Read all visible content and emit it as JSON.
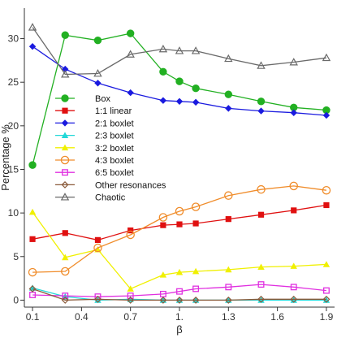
{
  "chart_data": {
    "type": "line",
    "xlabel": "β",
    "ylabel": "Percentage %",
    "xlim": [
      0.05,
      1.95
    ],
    "ylim": [
      -0.8,
      33.5
    ],
    "xticks": [
      0.1,
      0.4,
      0.7,
      1.0,
      1.3,
      1.6,
      1.9
    ],
    "xtick_labels": [
      "0.1",
      "0.4",
      "0.7",
      "1.",
      "1.3",
      "1.6",
      "1.9"
    ],
    "yticks": [
      0,
      5,
      10,
      15,
      20,
      25,
      30
    ],
    "ytick_labels": [
      "0",
      "5",
      "10",
      "15",
      "20",
      "25",
      "30"
    ],
    "grid": false,
    "legend_placement": "left-center",
    "series": [
      {
        "name": "Box",
        "color": "#22b022",
        "marker": "circle-filled",
        "x": [
          0.1,
          0.3,
          0.5,
          0.7,
          0.9,
          1.0,
          1.1,
          1.3,
          1.5,
          1.7,
          1.9
        ],
        "y": [
          15.5,
          30.4,
          29.8,
          30.6,
          26.2,
          25.1,
          24.3,
          23.6,
          22.8,
          22.1,
          21.8
        ]
      },
      {
        "name": "1:1 linear",
        "color": "#e01010",
        "marker": "square-filled",
        "x": [
          0.1,
          0.3,
          0.5,
          0.7,
          0.9,
          1.0,
          1.1,
          1.3,
          1.5,
          1.7,
          1.9
        ],
        "y": [
          7.0,
          7.7,
          6.9,
          8.0,
          8.6,
          8.7,
          8.8,
          9.3,
          9.8,
          10.3,
          10.9
        ]
      },
      {
        "name": "2:1 boxlet",
        "color": "#1a1adf",
        "marker": "diamond-filled",
        "x": [
          0.1,
          0.3,
          0.5,
          0.7,
          0.9,
          1.0,
          1.1,
          1.3,
          1.5,
          1.7,
          1.9
        ],
        "y": [
          29.1,
          26.5,
          24.9,
          23.8,
          22.9,
          22.8,
          22.7,
          22.0,
          21.7,
          21.5,
          21.2
        ]
      },
      {
        "name": "2:3 boxlet",
        "color": "#22d8d8",
        "marker": "triangle-filled",
        "x": [
          0.1,
          0.3,
          0.5,
          0.7,
          0.9,
          1.0,
          1.1,
          1.3,
          1.5,
          1.7,
          1.9
        ],
        "y": [
          1.4,
          0.4,
          0.0,
          0.1,
          0.0,
          0.0,
          0.0,
          0.0,
          0.0,
          0.0,
          0.0
        ]
      },
      {
        "name": "3:2 boxlet",
        "color": "#f0f000",
        "marker": "triangle-filled",
        "x": [
          0.1,
          0.3,
          0.5,
          0.7,
          0.9,
          1.0,
          1.1,
          1.3,
          1.5,
          1.7,
          1.9
        ],
        "y": [
          10.1,
          4.9,
          5.8,
          1.3,
          2.9,
          3.2,
          3.3,
          3.5,
          3.8,
          3.9,
          4.1
        ]
      },
      {
        "name": "4:3 boxlet",
        "color": "#f08c2a",
        "marker": "circle-open",
        "x": [
          0.1,
          0.3,
          0.5,
          0.7,
          0.9,
          1.0,
          1.1,
          1.3,
          1.5,
          1.7,
          1.9
        ],
        "y": [
          3.2,
          3.3,
          6.0,
          7.5,
          9.5,
          10.2,
          10.7,
          12.0,
          12.7,
          13.1,
          12.6
        ]
      },
      {
        "name": "6:5 boxlet",
        "color": "#e030e0",
        "marker": "square-open",
        "x": [
          0.1,
          0.3,
          0.5,
          0.7,
          0.9,
          1.0,
          1.1,
          1.3,
          1.5,
          1.7,
          1.9
        ],
        "y": [
          0.6,
          0.5,
          0.4,
          0.5,
          0.7,
          1.0,
          1.3,
          1.5,
          1.8,
          1.5,
          1.1
        ]
      },
      {
        "name": "Other resonances",
        "color": "#8a5a3a",
        "marker": "diamond-open",
        "x": [
          0.1,
          0.3,
          0.5,
          0.7,
          0.9,
          1.0,
          1.1,
          1.3,
          1.5,
          1.7,
          1.9
        ],
        "y": [
          1.3,
          0.0,
          0.1,
          0.0,
          0.0,
          0.0,
          0.0,
          0.0,
          0.1,
          0.1,
          0.1
        ]
      },
      {
        "name": "Chaotic",
        "color": "#6a6a6a",
        "marker": "triangle-open",
        "x": [
          0.1,
          0.3,
          0.5,
          0.7,
          0.9,
          1.0,
          1.1,
          1.3,
          1.5,
          1.7,
          1.9
        ],
        "y": [
          31.3,
          25.9,
          26.0,
          28.2,
          28.8,
          28.6,
          28.6,
          27.7,
          26.9,
          27.3,
          27.8
        ]
      }
    ]
  }
}
